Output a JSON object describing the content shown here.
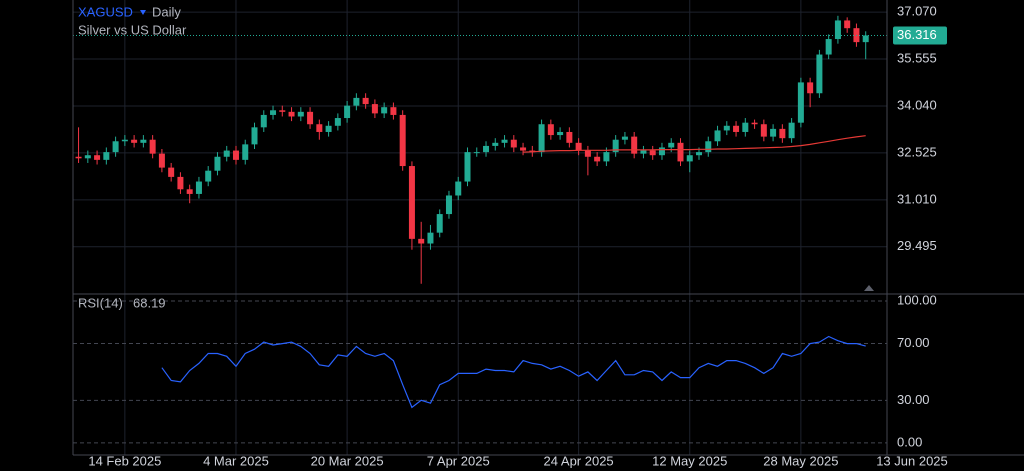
{
  "chart_data": {
    "type": "candlestick",
    "symbol": "XAGUSD",
    "interval": "Daily",
    "title": "Silver vs US Dollar",
    "up_color": "#22ab94",
    "down_color": "#f23645",
    "grid": true,
    "xlim": [
      -0.6,
      87.3
    ],
    "xticks": [
      {
        "value": 5,
        "label": "14 Feb 2025"
      },
      {
        "value": 17,
        "label": "4 Mar 2025"
      },
      {
        "value": 29,
        "label": "20 Mar 2025"
      },
      {
        "value": 41,
        "label": "7 Apr 2025"
      },
      {
        "value": 54,
        "label": "24 Apr 2025"
      },
      {
        "value": 66,
        "label": "12 May 2025"
      },
      {
        "value": 78,
        "label": "28 May 2025"
      },
      {
        "value": 90,
        "label": "13 Jun 2025"
      }
    ],
    "ylim": [
      27.97,
      37.46
    ],
    "yticks": [
      {
        "value": 37.07,
        "label": "37.070"
      },
      35.555,
      {
        "value": 34.04,
        "label": "34.040"
      },
      32.525,
      {
        "value": 31.01,
        "label": "31.010"
      },
      29.495
    ],
    "open": [
      32.4,
      32.35,
      32.45,
      32.3,
      32.55,
      32.9,
      32.95,
      32.85,
      32.95,
      32.5,
      32.05,
      31.75,
      31.35,
      31.2,
      31.6,
      31.95,
      32.4,
      32.6,
      32.3,
      32.8,
      33.35,
      33.75,
      33.9,
      33.85,
      33.7,
      33.85,
      33.45,
      33.2,
      33.4,
      33.65,
      34.05,
      34.3,
      34.1,
      33.8,
      34.0,
      33.75,
      32.1,
      29.75,
      29.6,
      29.95,
      30.55,
      31.15,
      31.6,
      32.55,
      32.55,
      32.75,
      32.85,
      32.95,
      32.7,
      32.6,
      32.55,
      33.45,
      33.1,
      33.2,
      32.85,
      32.6,
      32.4,
      32.25,
      32.55,
      32.95,
      33.05,
      32.5,
      32.6,
      32.45,
      32.7,
      32.85,
      32.25,
      32.45,
      32.55,
      32.9,
      33.25,
      33.4,
      33.2,
      33.5,
      33.45,
      33.05,
      33.3,
      33.0,
      33.5,
      34.8,
      34.45,
      35.7,
      36.2,
      36.8,
      36.55,
      36.1
    ],
    "high": [
      33.35,
      32.6,
      32.6,
      32.7,
      33.05,
      33.1,
      33.1,
      33.1,
      33.1,
      32.65,
      32.2,
      31.9,
      31.5,
      31.75,
      32.1,
      32.55,
      32.75,
      32.75,
      32.95,
      33.5,
      33.9,
      34.05,
      34.05,
      34.0,
      34.0,
      34.0,
      33.6,
      33.55,
      33.8,
      34.2,
      34.45,
      34.45,
      34.25,
      34.15,
      34.15,
      33.9,
      32.25,
      30.3,
      30.2,
      30.7,
      31.3,
      31.75,
      32.7,
      32.7,
      32.9,
      33.0,
      33.1,
      33.1,
      32.85,
      32.75,
      33.6,
      33.6,
      33.35,
      33.35,
      33.0,
      32.75,
      32.55,
      32.7,
      33.1,
      33.2,
      33.2,
      32.75,
      32.75,
      32.85,
      33.0,
      33.0,
      32.6,
      32.7,
      33.05,
      33.4,
      33.55,
      33.55,
      33.65,
      33.6,
      33.6,
      33.45,
      33.45,
      33.65,
      34.95,
      34.95,
      35.85,
      36.35,
      36.95,
      36.9,
      36.7,
      36.45
    ],
    "low": [
      32.2,
      32.2,
      32.15,
      32.15,
      32.4,
      32.75,
      32.7,
      32.7,
      32.35,
      31.9,
      31.6,
      31.2,
      30.9,
      31.05,
      31.45,
      31.8,
      32.25,
      32.15,
      32.15,
      32.65,
      33.2,
      33.6,
      33.7,
      33.55,
      33.55,
      33.3,
      32.95,
      33.05,
      33.25,
      33.5,
      33.9,
      33.95,
      33.65,
      33.65,
      33.6,
      31.95,
      29.4,
      28.3,
      29.4,
      29.8,
      30.4,
      31.0,
      31.45,
      32.4,
      32.4,
      32.6,
      32.7,
      32.55,
      32.45,
      32.4,
      32.4,
      32.95,
      32.95,
      32.7,
      32.45,
      31.8,
      32.1,
      32.1,
      32.4,
      32.8,
      32.35,
      32.35,
      32.3,
      32.3,
      32.55,
      32.1,
      31.9,
      32.3,
      32.4,
      32.75,
      33.1,
      33.05,
      33.05,
      33.3,
      32.9,
      32.9,
      32.85,
      32.85,
      33.35,
      34.0,
      34.3,
      35.55,
      36.05,
      36.4,
      35.95,
      35.55
    ],
    "close": [
      32.35,
      32.45,
      32.3,
      32.55,
      32.9,
      32.95,
      32.85,
      32.95,
      32.5,
      32.05,
      31.75,
      31.35,
      31.2,
      31.6,
      31.95,
      32.4,
      32.6,
      32.3,
      32.8,
      33.35,
      33.75,
      33.9,
      33.85,
      33.7,
      33.85,
      33.45,
      33.2,
      33.4,
      33.65,
      34.05,
      34.3,
      34.1,
      33.8,
      34.0,
      33.75,
      32.1,
      29.75,
      29.6,
      29.95,
      30.55,
      31.15,
      31.6,
      32.55,
      32.55,
      32.75,
      32.85,
      32.95,
      32.7,
      32.6,
      32.55,
      33.45,
      33.1,
      33.2,
      32.85,
      32.6,
      32.4,
      32.25,
      32.55,
      32.95,
      33.05,
      32.5,
      32.6,
      32.45,
      32.7,
      32.85,
      32.25,
      32.45,
      32.55,
      32.9,
      33.25,
      33.4,
      33.2,
      33.5,
      33.45,
      33.05,
      33.3,
      33.0,
      33.5,
      34.8,
      34.45,
      35.7,
      36.2,
      36.8,
      36.55,
      36.1,
      36.316
    ],
    "moving_average": {
      "color": "#e53935",
      "values": [
        null,
        null,
        null,
        null,
        null,
        null,
        null,
        null,
        null,
        null,
        null,
        null,
        null,
        null,
        null,
        null,
        null,
        null,
        null,
        null,
        null,
        null,
        null,
        null,
        null,
        null,
        null,
        null,
        null,
        null,
        null,
        null,
        null,
        null,
        null,
        null,
        null,
        null,
        null,
        null,
        null,
        null,
        null,
        null,
        null,
        null,
        null,
        null,
        32.55,
        32.56,
        32.58,
        32.59,
        32.6,
        32.6,
        32.61,
        32.61,
        32.61,
        32.61,
        32.62,
        32.62,
        32.62,
        32.62,
        32.62,
        32.63,
        32.63,
        32.63,
        32.63,
        32.64,
        32.64,
        32.65,
        32.65,
        32.66,
        32.67,
        32.68,
        32.69,
        32.7,
        32.71,
        32.73,
        32.76,
        32.8,
        32.85,
        32.9,
        32.95,
        33.0,
        33.04,
        33.08
      ]
    },
    "rsi": {
      "name": "RSI(14)",
      "color": "#2962ff",
      "ylim": [
        -8.5,
        104.2
      ],
      "yticks": [
        {
          "value": 100,
          "label": "100.00"
        },
        {
          "value": 70,
          "label": "70.00"
        },
        {
          "value": 30,
          "label": "30.00"
        },
        {
          "value": 0,
          "label": "0.00"
        }
      ],
      "values": [
        null,
        null,
        null,
        null,
        null,
        null,
        null,
        null,
        null,
        53,
        44,
        43,
        51,
        56,
        63,
        63,
        61,
        54,
        63,
        66,
        71,
        69,
        70,
        71,
        68,
        63,
        55,
        54,
        62,
        61,
        68,
        63,
        61,
        63,
        58,
        41,
        25,
        30,
        28,
        41,
        44,
        49,
        49,
        49,
        52,
        51,
        51,
        50,
        58,
        56,
        55,
        52,
        54,
        51,
        47,
        50,
        44,
        51,
        58,
        48,
        48,
        51,
        50,
        44,
        50,
        46,
        46,
        53,
        56,
        54,
        58,
        58,
        56,
        53,
        49,
        53,
        63,
        61,
        63,
        70,
        71,
        75,
        72,
        70,
        70,
        68.19
      ]
    }
  }
}
